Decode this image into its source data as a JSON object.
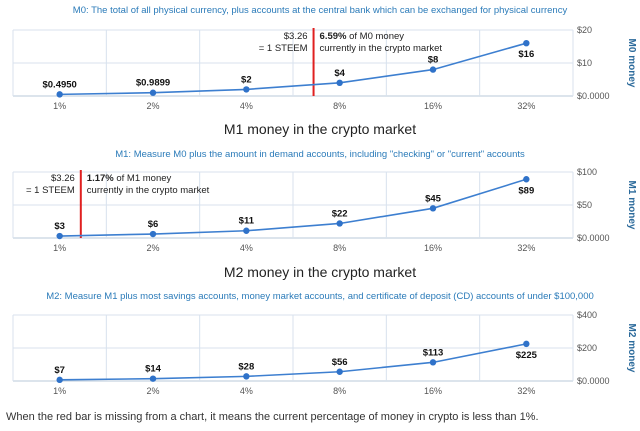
{
  "colors": {
    "subtitle": "#2b7bb9",
    "title": "#222222",
    "line": "#3d7fd0",
    "marker": "#2f72c9",
    "grid": "#d8e2ee",
    "axis": "#b8c8d8",
    "tick": "#555555",
    "ylabel": "#2b6a9b",
    "redbar": "#e02020",
    "annotation": "#222222"
  },
  "chart_data": [
    {
      "type": "line",
      "title": "",
      "subtitle": "M0: The total of all physical currency, plus accounts at the central bank which can be exchanged for physical currency",
      "ylabel": "M0 money",
      "categories": [
        "1%",
        "2%",
        "4%",
        "8%",
        "16%",
        "32%"
      ],
      "series": [
        {
          "values": [
            0.495,
            0.9899,
            2,
            4,
            8,
            16
          ]
        }
      ],
      "data_labels": [
        "$0.4950",
        "$0.9899",
        "$2",
        "$4",
        "$8",
        "$16"
      ],
      "y_ticks": [
        0,
        10,
        20
      ],
      "y_tick_labels": [
        "$0.0000",
        "$10",
        "$20"
      ],
      "ylim": [
        0,
        20
      ],
      "grid": true,
      "red_bar": {
        "position_percent": 6.59
      },
      "annotation": {
        "price_line1": "$3.26",
        "price_line2": "= 1 STEEM",
        "pct": "6.59%",
        "line1_rest": " of M0 money",
        "line2": "currently in the crypto market"
      }
    },
    {
      "type": "line",
      "title": "M1 money in the crypto market",
      "subtitle": "M1: Measure M0 plus the amount in demand accounts, including \"checking\" or \"current\" accounts",
      "ylabel": "M1 money",
      "categories": [
        "1%",
        "2%",
        "4%",
        "8%",
        "16%",
        "32%"
      ],
      "series": [
        {
          "values": [
            3,
            6,
            11,
            22,
            45,
            89
          ]
        }
      ],
      "data_labels": [
        "$3",
        "$6",
        "$11",
        "$22",
        "$45",
        "$89"
      ],
      "y_ticks": [
        0,
        50,
        100
      ],
      "y_tick_labels": [
        "$0.0000",
        "$50",
        "$100"
      ],
      "ylim": [
        0,
        100
      ],
      "grid": true,
      "red_bar": {
        "position_percent": 1.17
      },
      "annotation": {
        "price_line1": "$3.26",
        "price_line2": "= 1 STEEM",
        "pct": "1.17%",
        "line1_rest": " of M1 money",
        "line2": "currently in the crypto market"
      }
    },
    {
      "type": "line",
      "title": "M2 money in the crypto market",
      "subtitle": "M2: Measure M1 plus most savings accounts, money market accounts, and certificate of deposit (CD) accounts of under $100,000",
      "ylabel": "M2 money",
      "categories": [
        "1%",
        "2%",
        "4%",
        "8%",
        "16%",
        "32%"
      ],
      "series": [
        {
          "values": [
            7,
            14,
            28,
            56,
            113,
            225
          ]
        }
      ],
      "data_labels": [
        "$7",
        "$14",
        "$28",
        "$56",
        "$113",
        "$225"
      ],
      "y_ticks": [
        0,
        200,
        400
      ],
      "y_tick_labels": [
        "$0.0000",
        "$200",
        "$400"
      ],
      "ylim": [
        0,
        400
      ],
      "grid": true
    }
  ],
  "footnote": "When the red bar is missing from a chart, it means the current percentage of money in crypto is less than 1%."
}
